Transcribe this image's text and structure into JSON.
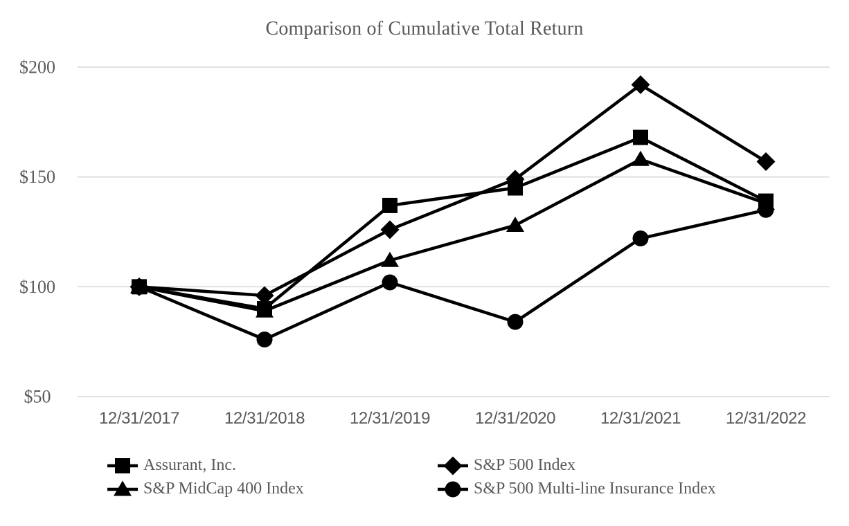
{
  "chart_data": {
    "type": "line",
    "title": "Comparison of Cumulative Total Return",
    "categories": [
      "12/31/2017",
      "12/31/2018",
      "12/31/2019",
      "12/31/2020",
      "12/31/2021",
      "12/31/2022"
    ],
    "series": [
      {
        "name": "Assurant, Inc.",
        "marker": "square",
        "color": "#000000",
        "values": [
          100,
          90,
          137,
          145,
          168,
          139
        ]
      },
      {
        "name": "S&P 500 Index",
        "marker": "diamond",
        "color": "#000000",
        "values": [
          100,
          96,
          126,
          149,
          192,
          157
        ]
      },
      {
        "name": "S&P MidCap 400 Index",
        "marker": "triangle",
        "color": "#000000",
        "values": [
          100,
          89,
          112,
          128,
          158,
          138
        ]
      },
      {
        "name": "S&P 500 Multi-line Insurance Index",
        "marker": "circle",
        "color": "#000000",
        "values": [
          100,
          76,
          102,
          84,
          122,
          135
        ]
      }
    ],
    "y_axis": {
      "min": 50,
      "max": 200,
      "tick_interval": 50,
      "tick_labels_top_to_bottom": [
        "$200",
        "$150",
        "$100",
        "$50"
      ],
      "unit": "USD"
    },
    "x_axis": {
      "tick_labels": [
        "12/31/2017",
        "12/31/2018",
        "12/31/2019",
        "12/31/2020",
        "12/31/2021",
        "12/31/2022"
      ]
    },
    "legend": {
      "position": "bottom",
      "columns": 2,
      "entries": [
        "Assurant, Inc.",
        "S&P 500 Index",
        "S&P MidCap 400 Index",
        "S&P 500 Multi-line Insurance Index"
      ]
    },
    "grid": "horizontal-only",
    "styles": {
      "series_color": "#000000",
      "text_color": "#595959",
      "gridline_color": "#d9d9d9",
      "background_color": "#ffffff"
    }
  }
}
